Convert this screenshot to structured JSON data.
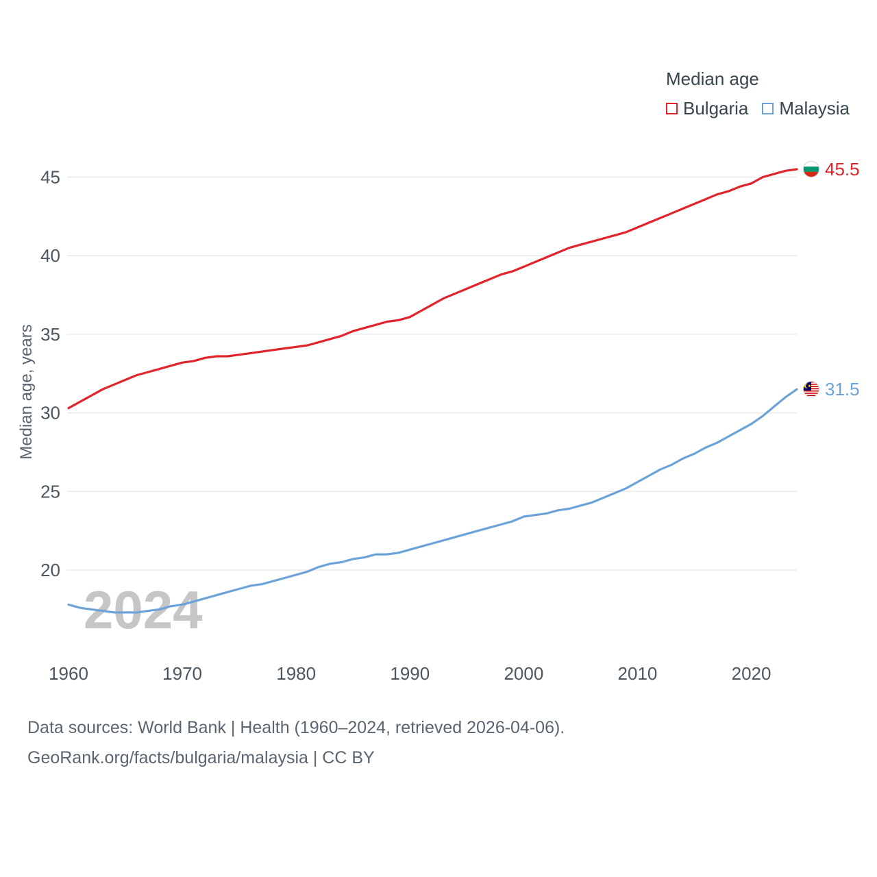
{
  "legend": {
    "title": "Median age",
    "items": [
      {
        "label": "Bulgaria",
        "color": "#e1242b"
      },
      {
        "label": "Malaysia",
        "color": "#6ba3d9"
      }
    ]
  },
  "watermark": "2024",
  "footer": {
    "line1": "Data sources: World Bank | Health (1960–2024, retrieved 2026-04-06).",
    "line2": "GeoRank.org/facts/bulgaria/malaysia | CC BY"
  },
  "chart_data": {
    "type": "line",
    "title": "Median age",
    "xlabel": "",
    "ylabel": "Median age, years",
    "xlim": [
      1960,
      2024
    ],
    "ylim": [
      16.5,
      47
    ],
    "x_ticks": [
      1960,
      1970,
      1980,
      1990,
      2000,
      2010,
      2020
    ],
    "y_ticks": [
      20,
      25,
      30,
      35,
      40,
      45
    ],
    "grid": "horizontal",
    "legend_position": "top-right",
    "x": [
      1960,
      1961,
      1962,
      1963,
      1964,
      1965,
      1966,
      1967,
      1968,
      1969,
      1970,
      1971,
      1972,
      1973,
      1974,
      1975,
      1976,
      1977,
      1978,
      1979,
      1980,
      1981,
      1982,
      1983,
      1984,
      1985,
      1986,
      1987,
      1988,
      1989,
      1990,
      1991,
      1992,
      1993,
      1994,
      1995,
      1996,
      1997,
      1998,
      1999,
      2000,
      2001,
      2002,
      2003,
      2004,
      2005,
      2006,
      2007,
      2008,
      2009,
      2010,
      2011,
      2012,
      2013,
      2014,
      2015,
      2016,
      2017,
      2018,
      2019,
      2020,
      2021,
      2022,
      2023,
      2024
    ],
    "series": [
      {
        "name": "Bulgaria",
        "color": "#e1242b",
        "end_label": "45.5",
        "flag": "bulgaria",
        "values": [
          30.3,
          30.7,
          31.1,
          31.5,
          31.8,
          32.1,
          32.4,
          32.6,
          32.8,
          33.0,
          33.2,
          33.3,
          33.5,
          33.6,
          33.6,
          33.7,
          33.8,
          33.9,
          34.0,
          34.1,
          34.2,
          34.3,
          34.5,
          34.7,
          34.9,
          35.2,
          35.4,
          35.6,
          35.8,
          35.9,
          36.1,
          36.5,
          36.9,
          37.3,
          37.6,
          37.9,
          38.2,
          38.5,
          38.8,
          39.0,
          39.3,
          39.6,
          39.9,
          40.2,
          40.5,
          40.7,
          40.9,
          41.1,
          41.3,
          41.5,
          41.8,
          42.1,
          42.4,
          42.7,
          43.0,
          43.3,
          43.6,
          43.9,
          44.1,
          44.4,
          44.6,
          45.0,
          45.2,
          45.4,
          45.5
        ]
      },
      {
        "name": "Malaysia",
        "color": "#6ba3d9",
        "end_label": "31.5",
        "flag": "malaysia",
        "values": [
          17.8,
          17.6,
          17.5,
          17.4,
          17.3,
          17.3,
          17.3,
          17.4,
          17.5,
          17.7,
          17.8,
          18.0,
          18.2,
          18.4,
          18.6,
          18.8,
          19.0,
          19.1,
          19.3,
          19.5,
          19.7,
          19.9,
          20.2,
          20.4,
          20.5,
          20.7,
          20.8,
          21.0,
          21.0,
          21.1,
          21.3,
          21.5,
          21.7,
          21.9,
          22.1,
          22.3,
          22.5,
          22.7,
          22.9,
          23.1,
          23.4,
          23.5,
          23.6,
          23.8,
          23.9,
          24.1,
          24.3,
          24.6,
          24.9,
          25.2,
          25.6,
          26.0,
          26.4,
          26.7,
          27.1,
          27.4,
          27.8,
          28.1,
          28.5,
          28.9,
          29.3,
          29.8,
          30.4,
          31.0,
          31.5
        ]
      }
    ]
  }
}
